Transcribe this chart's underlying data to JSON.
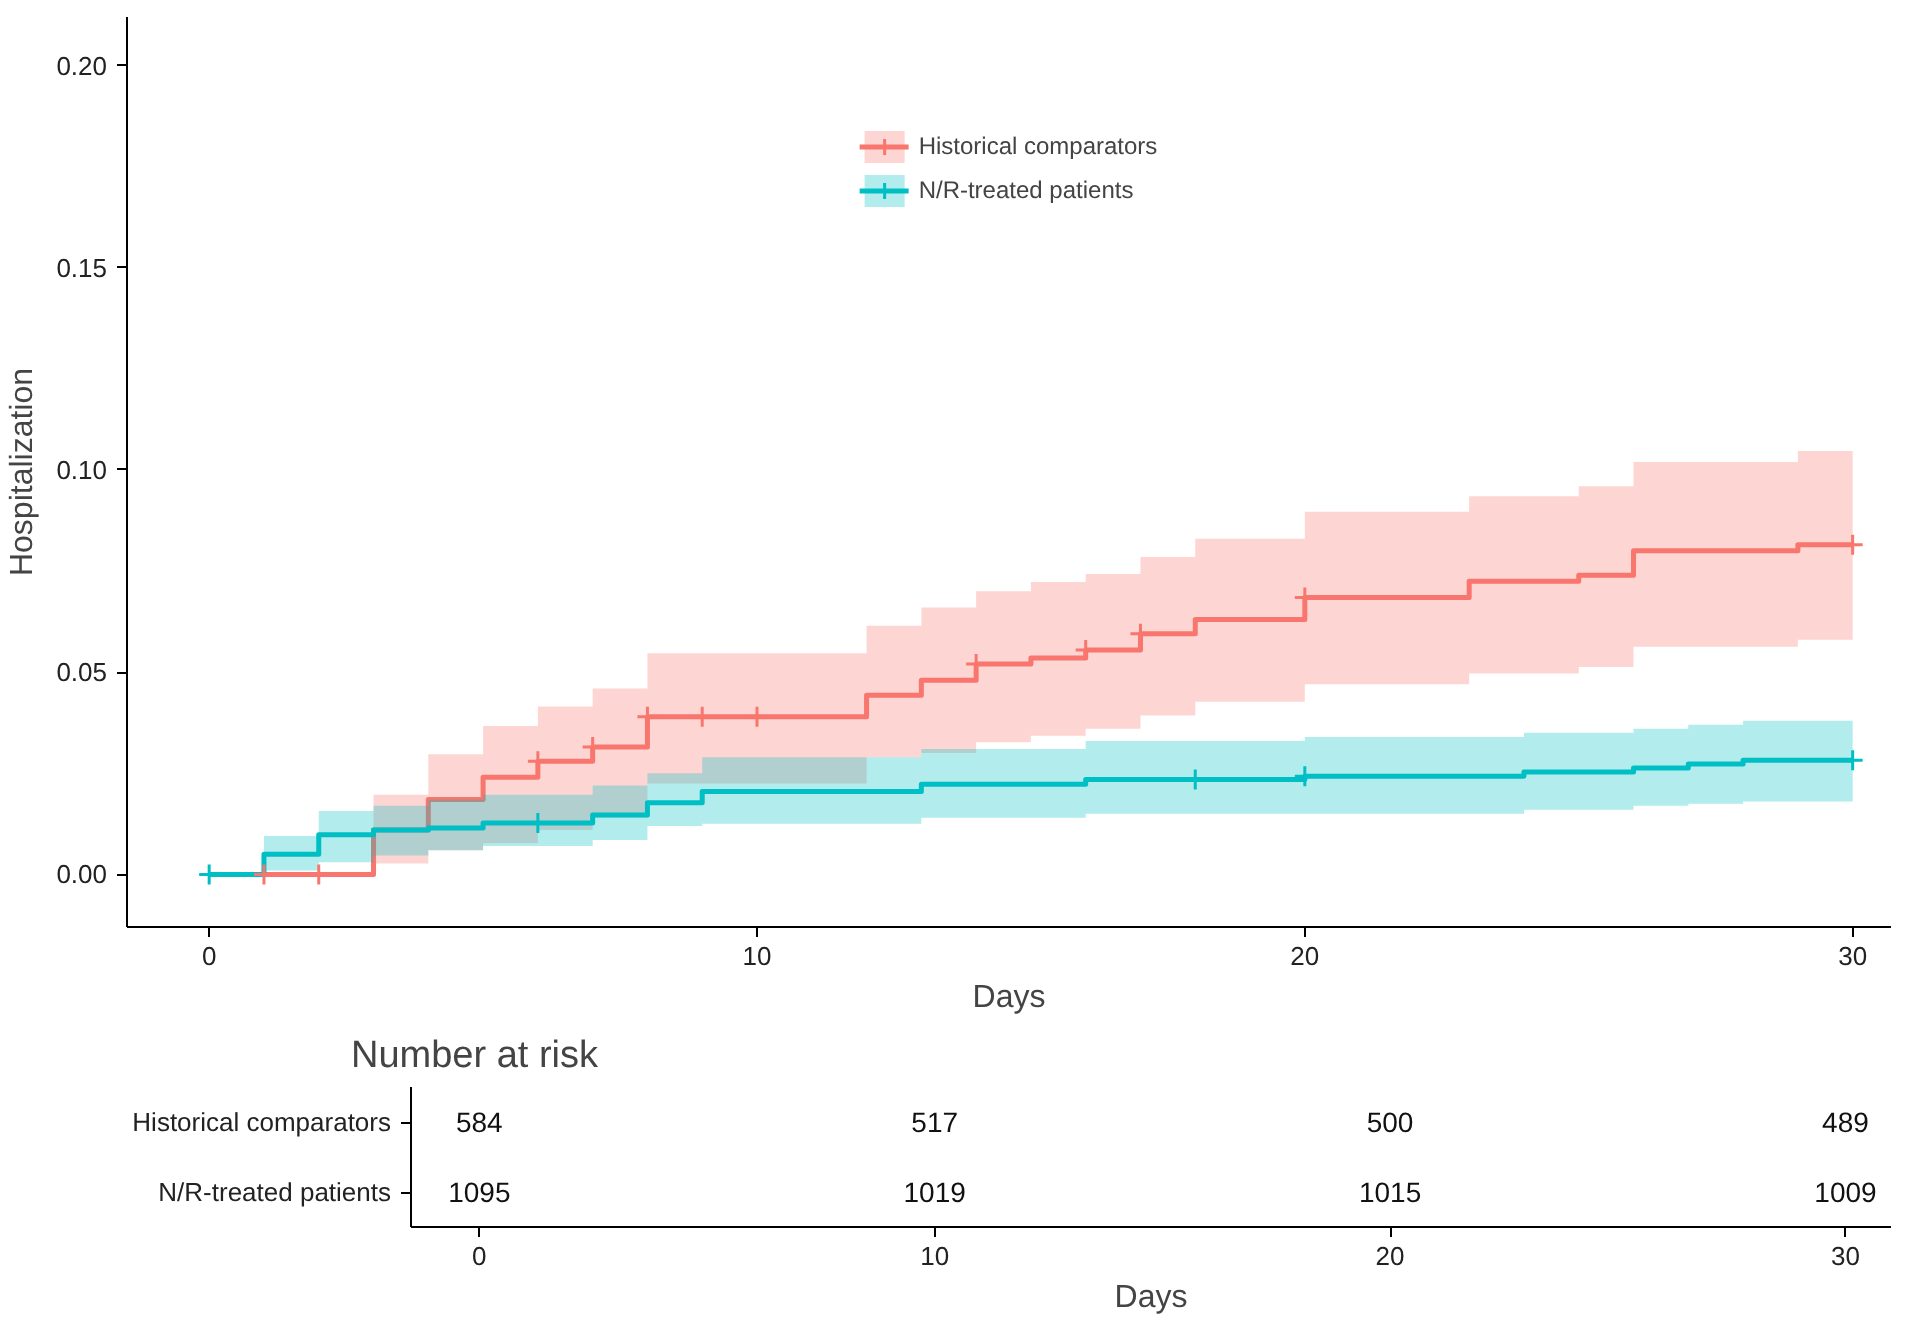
{
  "chart_data": [
    {
      "type": "step",
      "xlabel": "Days",
      "ylabel": "Hospitalization",
      "xlim": [
        -1.5,
        30.7
      ],
      "ylim": [
        -0.013,
        0.212
      ],
      "xticks": [
        0,
        10,
        20,
        30
      ],
      "yticks": [
        {
          "value": 0,
          "label": "0.00"
        },
        {
          "value": 0.05,
          "label": "0.05"
        },
        {
          "value": 0.1,
          "label": "0.10"
        },
        {
          "value": 0.15,
          "label": "0.15"
        },
        {
          "value": 0.2,
          "label": "0.20"
        }
      ],
      "grid": false,
      "legend": "top",
      "series": [
        {
          "name": "Historical comparators",
          "color": "#f8766d",
          "x": [
            0,
            3,
            4,
            5,
            6,
            7,
            8,
            12,
            13,
            14,
            15,
            16,
            17,
            18,
            20,
            23,
            25,
            26,
            29,
            30
          ],
          "values": [
            0,
            0.011,
            0.0185,
            0.024,
            0.028,
            0.0315,
            0.039,
            0.0443,
            0.048,
            0.052,
            0.0535,
            0.0555,
            0.0595,
            0.063,
            0.0685,
            0.0725,
            0.074,
            0.08,
            0.0815,
            0.0815
          ],
          "upper": [
            0,
            0.0197,
            0.0297,
            0.0367,
            0.0415,
            0.046,
            0.0547,
            0.0615,
            0.066,
            0.07,
            0.0723,
            0.0743,
            0.0785,
            0.083,
            0.0897,
            0.0935,
            0.096,
            0.102,
            0.1047,
            0.1047
          ],
          "lower": [
            0,
            0.0027,
            0.006,
            0.0077,
            0.011,
            0.014,
            0.0225,
            0.029,
            0.03,
            0.0327,
            0.0343,
            0.036,
            0.0393,
            0.0427,
            0.047,
            0.0497,
            0.0513,
            0.0563,
            0.058,
            0.058
          ]
        },
        {
          "name": "N/R-treated patients",
          "color": "#00bfc4",
          "x": [
            0,
            1,
            2,
            3,
            4,
            5,
            7,
            8,
            9,
            13,
            16,
            20,
            24,
            26,
            27,
            28,
            30
          ],
          "values": [
            0,
            0.005,
            0.0098,
            0.011,
            0.0115,
            0.0127,
            0.0147,
            0.0177,
            0.0205,
            0.0223,
            0.0235,
            0.0243,
            0.0253,
            0.0263,
            0.0273,
            0.0282,
            0.0282
          ],
          "upper": [
            0,
            0.0095,
            0.0157,
            0.017,
            0.0185,
            0.0197,
            0.022,
            0.025,
            0.029,
            0.031,
            0.033,
            0.034,
            0.035,
            0.036,
            0.037,
            0.038,
            0.038
          ],
          "lower": [
            0,
            0.001,
            0.003,
            0.0047,
            0.006,
            0.007,
            0.0085,
            0.012,
            0.0125,
            0.014,
            0.015,
            0.015,
            0.016,
            0.017,
            0.0175,
            0.018,
            0.018
          ]
        },
        {
          "type": "scatter",
          "marker": "cross",
          "color": "#f8766d",
          "x": [
            1,
            2,
            6,
            7,
            8,
            9,
            10,
            14,
            16,
            17,
            20,
            30
          ],
          "values": [
            0,
            0,
            0.028,
            0.0315,
            0.039,
            0.039,
            0.039,
            0.052,
            0.0555,
            0.0595,
            0.0685,
            0.0815
          ]
        },
        {
          "type": "scatter",
          "marker": "cross",
          "color": "#00bfc4",
          "x": [
            0,
            6,
            18,
            20,
            30
          ],
          "values": [
            0,
            0.0127,
            0.0235,
            0.0243,
            0.0282
          ]
        }
      ]
    },
    {
      "type": "heatmap",
      "title": "Number at risk",
      "xlabel": "Days",
      "categories": [
        "0",
        "10",
        "20",
        "30"
      ],
      "y_categories": [
        "Historical comparators",
        "N/R-treated patients"
      ],
      "data_labels": true,
      "cells": [
        [
          584,
          517,
          500,
          489
        ],
        [
          1095,
          1019,
          1015,
          1009
        ]
      ]
    }
  ]
}
